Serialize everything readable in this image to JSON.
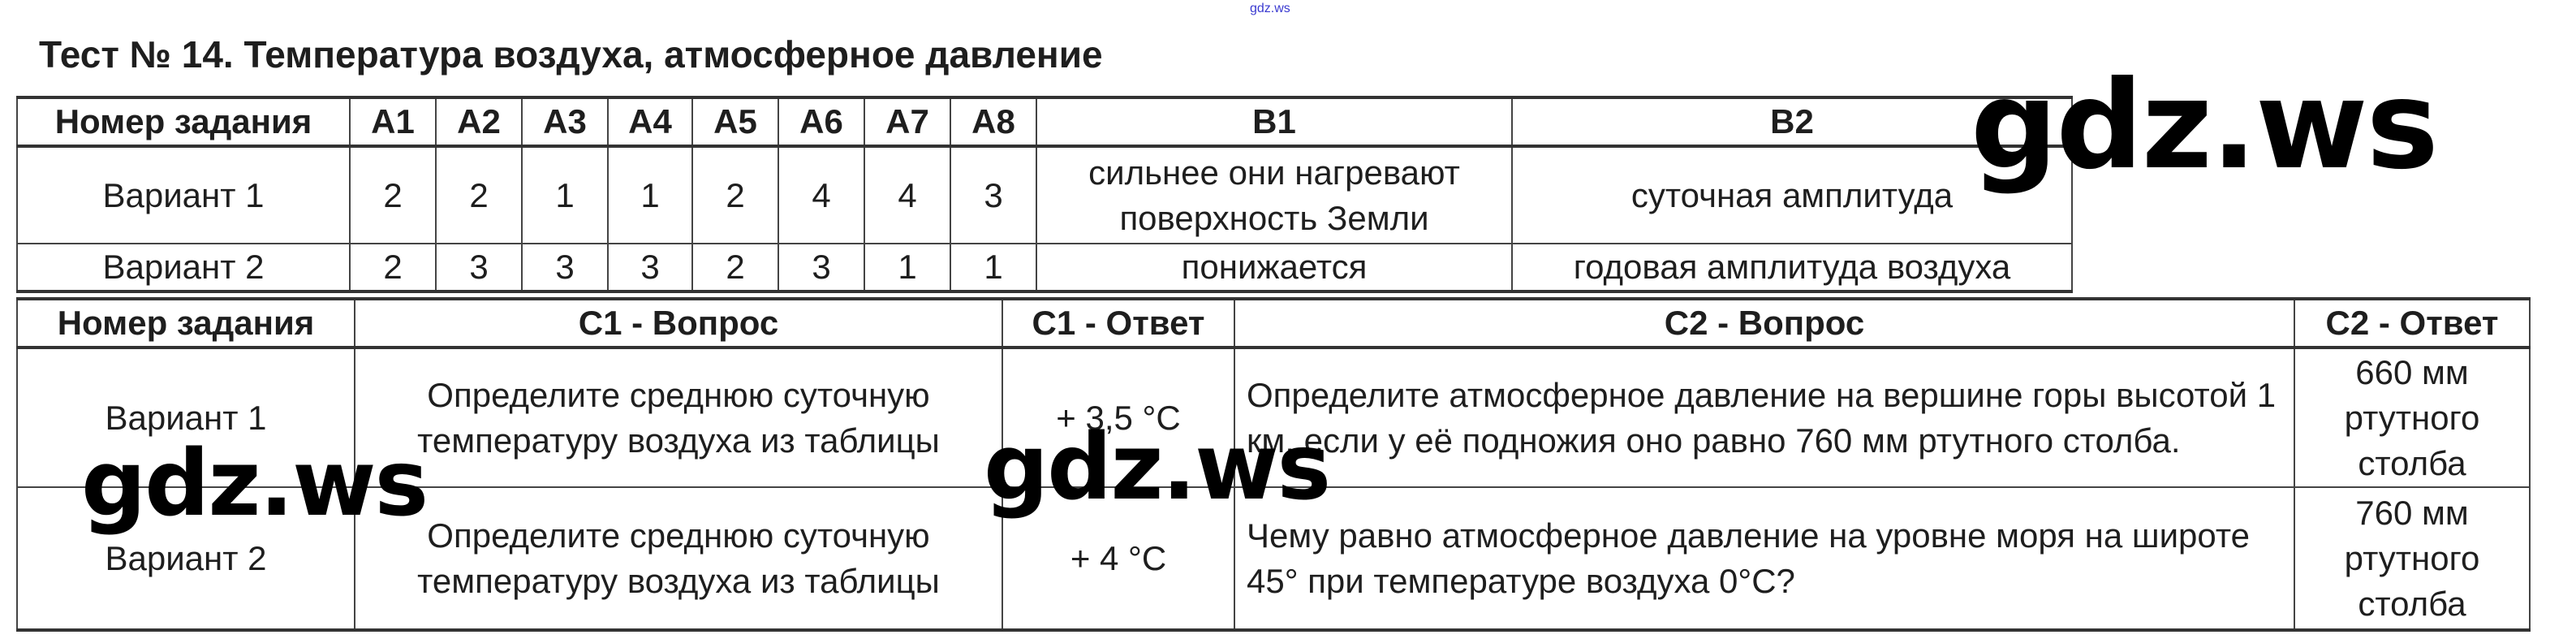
{
  "header_watermark": "gdz.ws",
  "title": "Тест № 14. Температура воздуха, атмосферное давление",
  "table1": {
    "headers": [
      "Номер задания",
      "A1",
      "A2",
      "A3",
      "A4",
      "A5",
      "A6",
      "A7",
      "A8",
      "B1",
      "B2"
    ],
    "rows": [
      [
        "Вариант 1",
        "2",
        "2",
        "1",
        "1",
        "2",
        "4",
        "4",
        "3",
        "сильнее они нагревают поверхность Земли",
        "суточная амплитуда"
      ],
      [
        "Вариант 2",
        "2",
        "3",
        "3",
        "3",
        "2",
        "3",
        "1",
        "1",
        "понижается",
        "годовая амплитуда воздуха"
      ]
    ]
  },
  "table2": {
    "headers": [
      "Номер задания",
      "C1 - Вопрос",
      "C1 - Ответ",
      "C2 - Вопрос",
      "C2 - Ответ"
    ],
    "rows": [
      [
        "Вариант 1",
        "Определите среднюю суточную температуру воздуха из таблицы",
        "+ 3,5 °C",
        "Определите атмосферное давление на вершине горы высотой 1 км, если у её подножия оно равно 760 мм ртутного столба.",
        "660 мм ртутного столба"
      ],
      [
        "Вариант 2",
        "Определите среднюю суточную температуру воздуха из таблицы",
        "+ 4 °C",
        "Чему равно атмосферное давление на уровне моря на широте 45° при температуре воздуха 0°С?",
        "760 мм ртутного столба"
      ]
    ]
  },
  "watermarks": [
    "gdz.ws",
    "gdz.ws",
    "gdz.ws"
  ]
}
